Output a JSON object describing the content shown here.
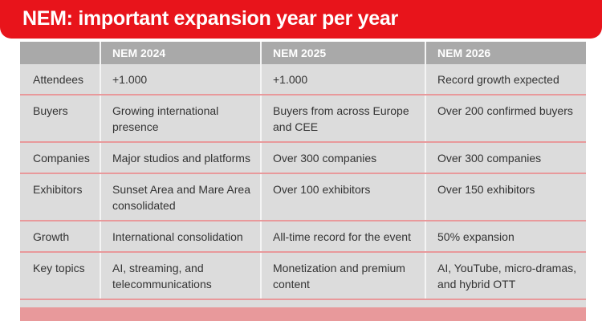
{
  "header": {
    "title": "NEM: important expansion year per year"
  },
  "table": {
    "columns": [
      "NEM 2024",
      "NEM 2025",
      "NEM 2026"
    ],
    "rows": [
      [
        "Attendees",
        "+1.000",
        "+1.000",
        "Record growth expected"
      ],
      [
        "Buyers",
        "Growing international presence",
        "Buyers from across Europe and CEE",
        "Over 200 confirmed buyers"
      ],
      [
        "Companies",
        "Major studios and platforms",
        "Over 300 companies",
        "Over 300 companies"
      ],
      [
        "Exhibitors",
        "Sunset Area and Mare Area consolidated",
        "Over 100 exhibitors",
        "Over 150 exhibitors"
      ],
      [
        "Growth",
        "International consolidation",
        "All-time record for the event",
        "50% expansion"
      ],
      [
        "Key topics",
        "AI, streaming, and telecommunications",
        "Monetization and premium content",
        "AI, YouTube, micro-dramas, and hybrid OTT"
      ]
    ]
  }
}
